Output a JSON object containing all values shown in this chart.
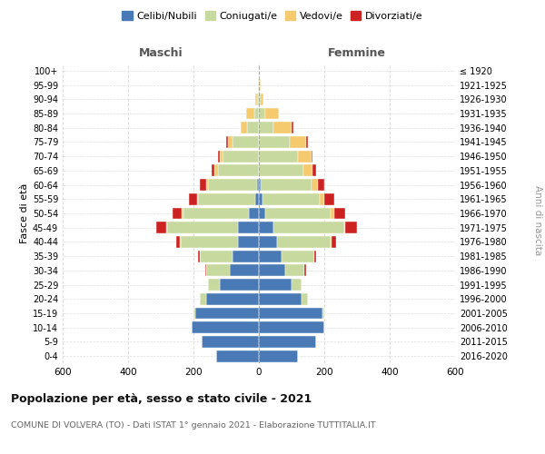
{
  "age_groups": [
    "0-4",
    "5-9",
    "10-14",
    "15-19",
    "20-24",
    "25-29",
    "30-34",
    "35-39",
    "40-44",
    "45-49",
    "50-54",
    "55-59",
    "60-64",
    "65-69",
    "70-74",
    "75-79",
    "80-84",
    "85-89",
    "90-94",
    "95-99",
    "100+"
  ],
  "birth_years": [
    "2016-2020",
    "2011-2015",
    "2006-2010",
    "2001-2005",
    "1996-2000",
    "1991-1995",
    "1986-1990",
    "1981-1985",
    "1976-1980",
    "1971-1975",
    "1966-1970",
    "1961-1965",
    "1956-1960",
    "1951-1955",
    "1946-1950",
    "1941-1945",
    "1936-1940",
    "1931-1935",
    "1926-1930",
    "1921-1925",
    "≤ 1920"
  ],
  "males": {
    "celibi": [
      130,
      175,
      205,
      195,
      160,
      120,
      90,
      80,
      65,
      65,
      30,
      10,
      5,
      0,
      0,
      0,
      0,
      0,
      0,
      0,
      0
    ],
    "coniugati": [
      0,
      0,
      0,
      5,
      20,
      35,
      70,
      100,
      175,
      215,
      200,
      175,
      150,
      125,
      110,
      80,
      35,
      15,
      5,
      2,
      0
    ],
    "vedovi": [
      0,
      0,
      0,
      0,
      0,
      0,
      0,
      0,
      2,
      3,
      5,
      5,
      5,
      10,
      10,
      15,
      20,
      25,
      5,
      2,
      0
    ],
    "divorziati": [
      0,
      0,
      0,
      0,
      0,
      0,
      5,
      5,
      10,
      30,
      30,
      25,
      20,
      10,
      5,
      5,
      0,
      0,
      0,
      0,
      0
    ]
  },
  "females": {
    "nubili": [
      120,
      175,
      200,
      195,
      130,
      100,
      80,
      70,
      55,
      45,
      20,
      10,
      5,
      0,
      0,
      0,
      0,
      0,
      0,
      0,
      0
    ],
    "coniugate": [
      0,
      0,
      0,
      5,
      20,
      30,
      60,
      100,
      165,
      215,
      200,
      175,
      155,
      135,
      120,
      95,
      45,
      20,
      5,
      2,
      0
    ],
    "vedove": [
      0,
      0,
      0,
      0,
      0,
      0,
      0,
      0,
      2,
      5,
      10,
      15,
      20,
      30,
      40,
      50,
      55,
      40,
      10,
      3,
      0
    ],
    "divorziate": [
      0,
      0,
      0,
      0,
      0,
      0,
      5,
      5,
      15,
      35,
      35,
      30,
      20,
      10,
      5,
      5,
      5,
      0,
      0,
      0,
      0
    ]
  },
  "colors": {
    "celibi": "#4a7ab5",
    "coniugati": "#c8d9a0",
    "vedovi": "#f5c96e",
    "divorziati": "#cc2222"
  },
  "title": "Popolazione per età, sesso e stato civile - 2021",
  "subtitle": "COMUNE DI VOLVERA (TO) - Dati ISTAT 1° gennaio 2021 - Elaborazione TUTTITALIA.IT",
  "xlabel_left": "Maschi",
  "xlabel_right": "Femmine",
  "ylabel_left": "Fasce di età",
  "ylabel_right": "Anni di nascita",
  "xlim": 600,
  "legend_labels": [
    "Celibi/Nubili",
    "Coniugati/e",
    "Vedovi/e",
    "Divorziati/e"
  ],
  "background_color": "#ffffff"
}
